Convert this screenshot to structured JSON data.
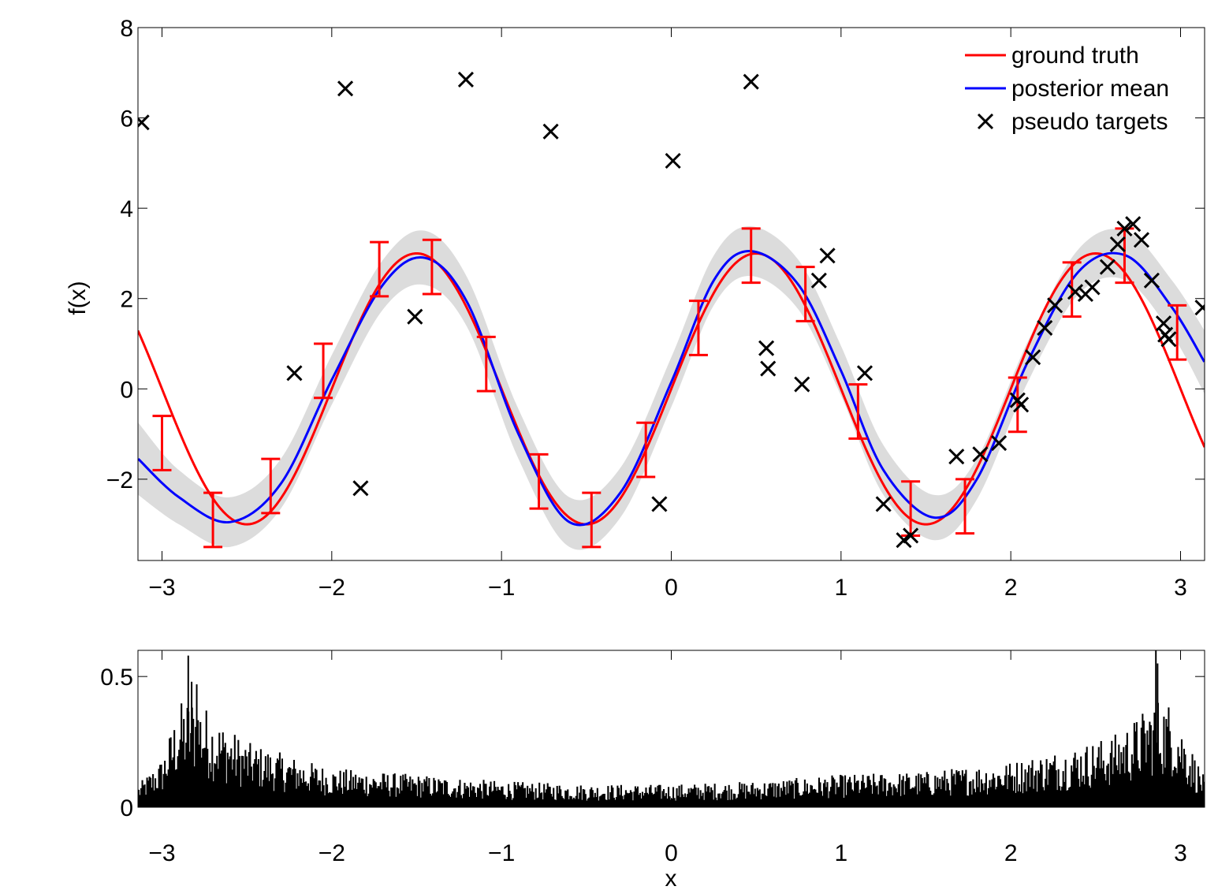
{
  "chart_data": [
    {
      "type": "line",
      "xlabel": "",
      "ylabel": "f(x)",
      "xlim": [
        -3.14159,
        3.14159
      ],
      "ylim": [
        -3.8,
        8
      ],
      "xticks": [
        -3,
        -2,
        -1,
        0,
        1,
        2,
        3
      ],
      "xtick_labels": [
        "−3",
        "−2",
        "−1",
        "0",
        "1",
        "2",
        "3"
      ],
      "yticks": [
        -2,
        0,
        2,
        4,
        6,
        8
      ],
      "ytick_labels": [
        "−2",
        "0",
        "2",
        "4",
        "6",
        "8"
      ],
      "legend_position": "top-right",
      "legend": [
        {
          "label": "ground truth",
          "color": "#ff0000",
          "marker": "line"
        },
        {
          "label": "posterior mean",
          "color": "#0000ff",
          "marker": "line"
        },
        {
          "label": "pseudo targets",
          "color": "#000000",
          "marker": "x"
        }
      ],
      "ground_truth_function": "3*sin(pi*x)",
      "ground_truth_color": "#ff0000",
      "posterior_mean_color": "#0000ff",
      "band_color": "#dcdcdc",
      "posterior_mean": {
        "x": [
          -3.14,
          -2.9,
          -2.6,
          -2.3,
          -2.0,
          -1.7,
          -1.45,
          -1.2,
          -0.9,
          -0.6,
          -0.3,
          0.0,
          0.25,
          0.47,
          0.75,
          1.0,
          1.25,
          1.55,
          1.8,
          2.1,
          2.4,
          2.68,
          2.95,
          3.14
        ],
        "y": [
          -1.55,
          -2.4,
          -2.95,
          -2.1,
          0.2,
          2.3,
          2.9,
          1.9,
          -1.0,
          -2.95,
          -2.3,
          0.15,
          2.4,
          3.05,
          2.3,
          0.4,
          -1.8,
          -2.85,
          -2.0,
          0.6,
          2.6,
          2.95,
          1.8,
          0.6
        ]
      },
      "band_halfwidth": [
        0.8,
        0.6,
        0.55,
        0.55,
        0.55,
        0.55,
        0.6,
        0.55,
        0.55,
        0.55,
        0.55,
        0.55,
        0.55,
        0.55,
        0.55,
        0.55,
        0.55,
        0.5,
        0.45,
        0.45,
        0.5,
        0.55,
        0.6,
        0.7
      ],
      "error_bars": {
        "x": [
          -3.0,
          -2.7,
          -2.36,
          -2.05,
          -1.72,
          -1.41,
          -1.09,
          -0.78,
          -0.47,
          -0.15,
          0.16,
          0.47,
          0.79,
          1.1,
          1.41,
          1.73,
          2.04,
          2.36,
          2.67,
          2.98
        ],
        "y": [
          -1.2,
          -2.9,
          -2.15,
          0.4,
          2.65,
          2.7,
          0.55,
          -2.05,
          -2.9,
          -1.35,
          1.35,
          2.95,
          2.1,
          -0.5,
          -2.65,
          -2.6,
          -0.35,
          2.2,
          2.95,
          1.25
        ],
        "err": [
          0.6,
          0.6,
          0.6,
          0.6,
          0.6,
          0.6,
          0.6,
          0.6,
          0.6,
          0.6,
          0.6,
          0.6,
          0.6,
          0.6,
          0.6,
          0.6,
          0.6,
          0.6,
          0.6,
          0.6
        ]
      },
      "pseudo_targets": {
        "x": [
          -3.12,
          -2.22,
          -1.92,
          -1.83,
          -1.51,
          -1.21,
          -0.71,
          -0.07,
          0.01,
          0.47,
          0.56,
          0.57,
          0.77,
          0.87,
          0.92,
          1.14,
          1.25,
          1.37,
          1.41,
          1.68,
          1.82,
          1.93,
          2.04,
          2.06,
          2.13,
          2.2,
          2.26,
          2.38,
          2.44,
          2.48,
          2.57,
          2.63,
          2.67,
          2.72,
          2.77,
          2.83,
          2.9,
          2.91,
          2.93,
          3.13
        ],
        "y": [
          5.9,
          0.35,
          6.65,
          -2.2,
          1.6,
          6.85,
          5.7,
          -2.55,
          5.05,
          6.8,
          0.9,
          0.45,
          0.1,
          2.4,
          2.95,
          0.35,
          -2.55,
          -3.35,
          -3.25,
          -1.5,
          -1.45,
          -1.2,
          -0.25,
          -0.35,
          0.7,
          1.35,
          1.85,
          2.15,
          2.1,
          2.25,
          2.7,
          3.2,
          3.55,
          3.65,
          3.3,
          2.4,
          1.45,
          1.2,
          1.1,
          1.8
        ]
      }
    },
    {
      "type": "bar",
      "xlabel": "x",
      "ylabel": "",
      "xlim": [
        -3.14159,
        3.14159
      ],
      "ylim": [
        0,
        0.6
      ],
      "xticks": [
        -3,
        -2,
        -1,
        0,
        1,
        2,
        3
      ],
      "xtick_labels": [
        "−3",
        "−2",
        "−1",
        "0",
        "1",
        "2",
        "3"
      ],
      "yticks": [
        0,
        0.5
      ],
      "ytick_labels": [
        "0",
        "0.5"
      ],
      "bar_color": "#000000",
      "histogram_envelope": {
        "x": [
          -3.14,
          -3.0,
          -2.9,
          -2.8,
          -2.7,
          -2.5,
          -2.2,
          -2.0,
          -1.5,
          -1.0,
          -0.5,
          0.0,
          0.5,
          1.0,
          1.5,
          2.0,
          2.4,
          2.6,
          2.75,
          2.85,
          2.95,
          3.05,
          3.14
        ],
        "y": [
          0.07,
          0.15,
          0.32,
          0.35,
          0.28,
          0.2,
          0.15,
          0.12,
          0.1,
          0.08,
          0.07,
          0.07,
          0.08,
          0.1,
          0.11,
          0.14,
          0.19,
          0.22,
          0.28,
          0.34,
          0.32,
          0.2,
          0.09
        ]
      },
      "peak_bars": {
        "x": [
          -2.85,
          -2.83,
          -2.8,
          2.85,
          2.86
        ],
        "y": [
          0.58,
          0.48,
          0.47,
          0.62,
          0.55
        ]
      }
    }
  ]
}
